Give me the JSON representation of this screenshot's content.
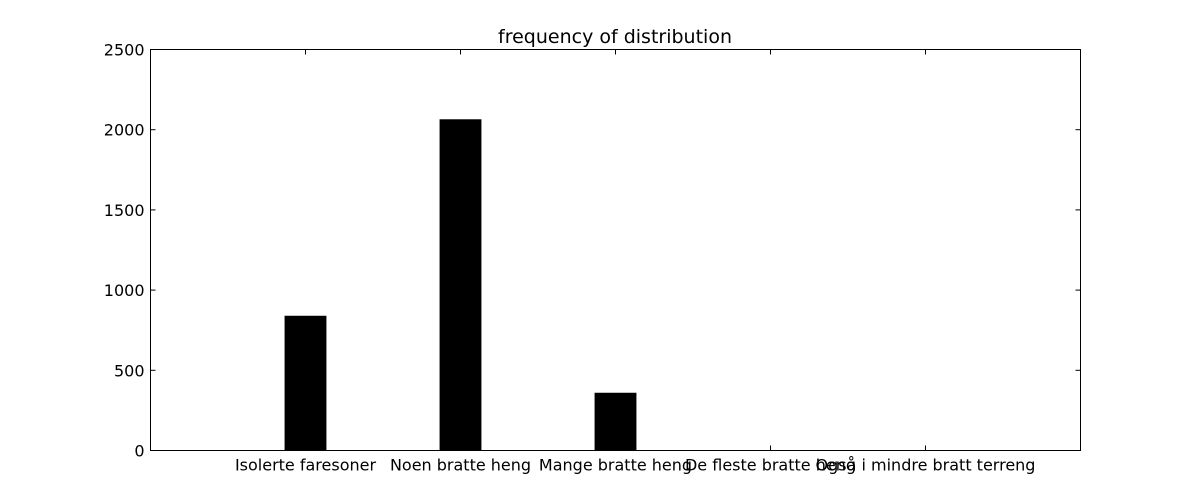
{
  "chart_data": {
    "type": "bar",
    "title": "frequency of distribution",
    "xlabel": "",
    "ylabel": "",
    "categories": [
      "Isolerte faresoner",
      "Noen bratte heng",
      "Mange bratte heng",
      "De fleste bratte heng",
      "Også i mindre bratt terreng"
    ],
    "values": [
      840,
      2065,
      360,
      0,
      0
    ],
    "ylim": [
      0,
      2500
    ],
    "xlim": [
      0,
      6
    ],
    "yticks": [
      0,
      500,
      1000,
      1500,
      2000,
      2500
    ],
    "grid": false,
    "legend": "none",
    "bar_color": "#000000"
  }
}
